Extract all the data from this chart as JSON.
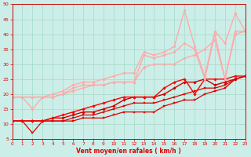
{
  "xlabel": "Vent moyen/en rafales ( km/h )",
  "xlim": [
    0,
    23
  ],
  "ylim": [
    5,
    50
  ],
  "yticks": [
    5,
    10,
    15,
    20,
    25,
    30,
    35,
    40,
    45,
    50
  ],
  "xticks": [
    0,
    1,
    2,
    3,
    4,
    5,
    6,
    7,
    8,
    9,
    10,
    11,
    12,
    13,
    14,
    15,
    16,
    17,
    18,
    19,
    20,
    21,
    22,
    23
  ],
  "bg_color": "#cceee8",
  "grid_color": "#aaddcc",
  "series": [
    {
      "x": [
        0,
        1,
        2,
        3,
        4,
        5,
        6,
        7,
        8,
        9,
        10,
        11,
        12,
        13,
        14,
        15,
        16,
        17,
        18,
        19,
        20,
        21,
        22,
        23
      ],
      "y": [
        11,
        11,
        7,
        11,
        11,
        11,
        11,
        12,
        12,
        12,
        13,
        14,
        14,
        14,
        14,
        16,
        17,
        18,
        18,
        20,
        21,
        22,
        25,
        26
      ],
      "color": "#dd0000",
      "lw": 0.9,
      "marker": "s",
      "ms": 1.8
    },
    {
      "x": [
        0,
        1,
        2,
        3,
        4,
        5,
        6,
        7,
        8,
        9,
        10,
        11,
        12,
        13,
        14,
        15,
        16,
        17,
        18,
        19,
        20,
        21,
        22,
        23
      ],
      "y": [
        11,
        11,
        11,
        11,
        11,
        11,
        12,
        13,
        13,
        14,
        15,
        16,
        17,
        17,
        17,
        18,
        19,
        20,
        21,
        22,
        22,
        23,
        25,
        26
      ],
      "color": "#dd0000",
      "lw": 0.9,
      "marker": "s",
      "ms": 1.8
    },
    {
      "x": [
        0,
        1,
        2,
        3,
        4,
        5,
        6,
        7,
        8,
        9,
        10,
        11,
        12,
        13,
        14,
        15,
        16,
        17,
        18,
        19,
        20,
        21,
        22,
        23
      ],
      "y": [
        11,
        11,
        11,
        11,
        12,
        12,
        13,
        14,
        14,
        15,
        16,
        18,
        19,
        19,
        19,
        20,
        22,
        24,
        24,
        25,
        23,
        24,
        25,
        26
      ],
      "color": "#cc0000",
      "lw": 1.0,
      "marker": "D",
      "ms": 1.8
    },
    {
      "x": [
        0,
        1,
        2,
        3,
        4,
        5,
        6,
        7,
        8,
        9,
        10,
        11,
        12,
        13,
        14,
        15,
        16,
        17,
        18,
        19,
        20,
        21,
        22,
        23
      ],
      "y": [
        11,
        11,
        11,
        11,
        12,
        13,
        14,
        15,
        16,
        17,
        18,
        19,
        19,
        19,
        19,
        22,
        24,
        25,
        20,
        25,
        25,
        25,
        26,
        26
      ],
      "color": "#ff0000",
      "lw": 1.0,
      "marker": "D",
      "ms": 1.8
    },
    {
      "x": [
        0,
        1,
        2,
        3,
        4,
        5,
        6,
        7,
        8,
        9,
        10,
        11,
        12,
        13,
        14,
        15,
        16,
        17,
        18,
        19,
        20,
        21,
        22,
        23
      ],
      "y": [
        19,
        19,
        19,
        19,
        19,
        20,
        21,
        22,
        23,
        23,
        24,
        24,
        24,
        29,
        30,
        30,
        30,
        32,
        33,
        35,
        38,
        25,
        40,
        41
      ],
      "color": "#ffaaaa",
      "lw": 1.0,
      "marker": "o",
      "ms": 2.0
    },
    {
      "x": [
        0,
        1,
        2,
        3,
        4,
        5,
        6,
        7,
        8,
        9,
        10,
        11,
        12,
        13,
        14,
        15,
        16,
        17,
        18,
        19,
        20,
        21,
        22,
        23
      ],
      "y": [
        19,
        19,
        15,
        19,
        19,
        20,
        22,
        23,
        23,
        23,
        24,
        24,
        24,
        33,
        32,
        33,
        34,
        37,
        35,
        25,
        40,
        25,
        41,
        41
      ],
      "color": "#ffaaaa",
      "lw": 1.0,
      "marker": "o",
      "ms": 2.0
    },
    {
      "x": [
        0,
        1,
        2,
        3,
        4,
        5,
        6,
        7,
        8,
        9,
        10,
        11,
        12,
        13,
        14,
        15,
        16,
        17,
        18,
        19,
        20,
        21,
        22,
        23
      ],
      "y": [
        19,
        19,
        19,
        19,
        20,
        21,
        23,
        24,
        24,
        25,
        26,
        27,
        27,
        34,
        33,
        34,
        36,
        48,
        36,
        26,
        41,
        37,
        47,
        41
      ],
      "color": "#ffaaaa",
      "lw": 1.0,
      "marker": "o",
      "ms": 2.0
    }
  ]
}
